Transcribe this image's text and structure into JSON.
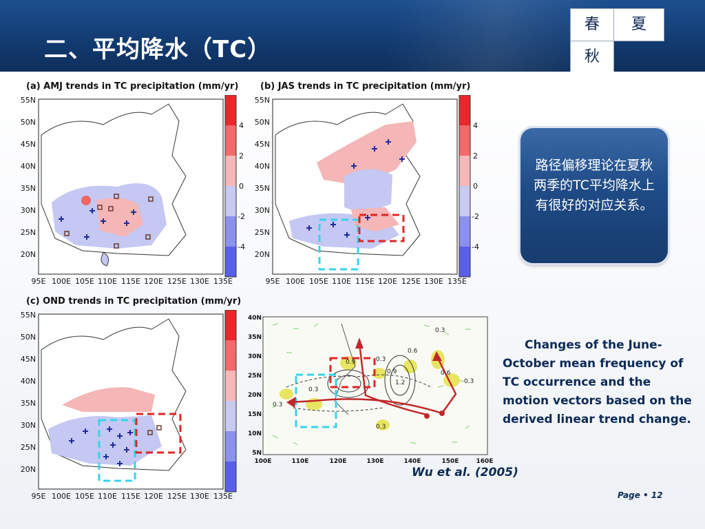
{
  "header": {
    "title": "二、平均降水（TC）",
    "seasons": {
      "spring": "春",
      "summer": "夏",
      "autumn": "秋"
    }
  },
  "panels": {
    "a": {
      "title": "(a) AMJ trends in TC precipitation (mm/yr)"
    },
    "b": {
      "title": "(b) JAS trends in TC precipitation (mm/yr)"
    },
    "c": {
      "title": "(c) OND trends in TC precipitation (mm/yr)"
    }
  },
  "map_axes": {
    "lat_labels": [
      "55N",
      "50N",
      "45N",
      "40N",
      "35N",
      "30N",
      "25N",
      "20N"
    ],
    "lon_labels": [
      "95E",
      "100E",
      "105E",
      "110E",
      "115E",
      "120E",
      "125E",
      "130E",
      "135E"
    ]
  },
  "colorbar": {
    "labels": [
      "4",
      "2",
      "0",
      "-2",
      "-4"
    ]
  },
  "vector_map": {
    "lat_labels": [
      "40N",
      "35N",
      "30N",
      "25N",
      "20N",
      "15N",
      "10N",
      "5N"
    ],
    "lon_labels": [
      "100E",
      "110E",
      "120E",
      "130E",
      "140E",
      "150E",
      "160E"
    ],
    "contour_labels": [
      "0.3",
      "0.3",
      "0.9",
      "0.3",
      "0.9",
      "0.6",
      "1.2",
      "0.3",
      "0.6",
      "0.3",
      "0.3"
    ]
  },
  "callout": {
    "text": "路径偏移理论在夏秋两季的TC平均降水上有很好的对应关系。"
  },
  "caption": {
    "text": "Changes of the June-October mean frequency of TC occurrence and the motion vectors based on the derived linear trend change."
  },
  "credit": "Wu et al. (2005)",
  "page": {
    "label": "Page",
    "separator": "•",
    "number": "12"
  }
}
